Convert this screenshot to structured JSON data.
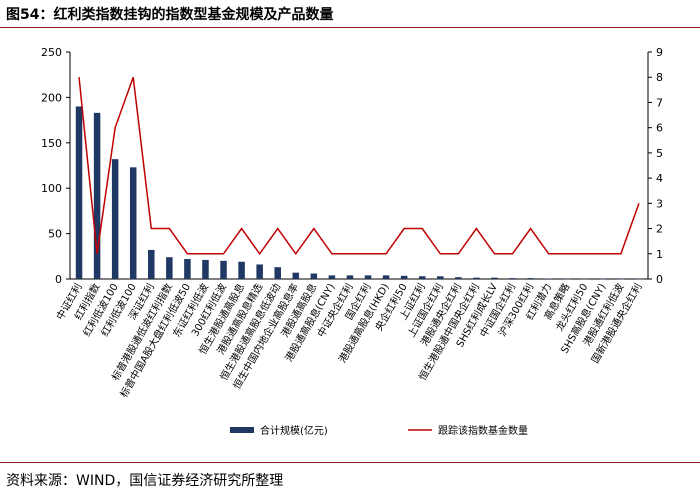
{
  "header": {
    "title": "图54：红利类指数挂钩的指数型基金规模及产品数量"
  },
  "footer": {
    "source": "资料来源：WIND，国信证券经济研究所整理"
  },
  "colors": {
    "bar": "#1f3864",
    "line": "#c00000",
    "rule": "#8c1d1d"
  },
  "chart_data": {
    "type": "bar",
    "categories": [
      "中证红利",
      "红利指数",
      "红利低波100",
      "红利低波100",
      "深证红利",
      "标普港股通低波红利指数",
      "标普中国A股大盘红利低波50",
      "东证红利低波",
      "300红利低波",
      "恒生港股通高股息",
      "港股通高股息精选",
      "恒生港股通高股息低波动",
      "恒生中国内地企业高股息率",
      "港股通高股息",
      "港股通高股息(CNY)",
      "中证央企红利",
      "国企红利",
      "港股通高股息(HKD)",
      "央企红利50",
      "上证红利",
      "上证国企红利",
      "港股通央企红利",
      "恒生港股通中国央企红利",
      "SHS红利成长LV",
      "中证国企红利",
      "沪深300红利",
      "红利潜力",
      "高息策略",
      "龙头红利50",
      "SHS高股息(CNY)",
      "港股通红利低波",
      "国新港股通央企红利"
    ],
    "series": [
      {
        "name": "合计规模(亿元)",
        "type": "bar",
        "axis": "left",
        "values": [
          190,
          183,
          132,
          123,
          32,
          24,
          22,
          21,
          20,
          19,
          16,
          13,
          7,
          6,
          4,
          4,
          4,
          4,
          3.5,
          3,
          3,
          2,
          1.5,
          1.5,
          1,
          1,
          0.5,
          0.3,
          0.2,
          0.2,
          0.1,
          0.1
        ]
      },
      {
        "name": "跟踪该指数基金数量",
        "type": "line",
        "axis": "right",
        "values": [
          8,
          1,
          6,
          8,
          2,
          2,
          1,
          1,
          1,
          2,
          1,
          2,
          1,
          2,
          1,
          1,
          1,
          1,
          2,
          2,
          1,
          1,
          2,
          1,
          1,
          2,
          1,
          1,
          1,
          1,
          1,
          3
        ]
      }
    ],
    "y_left": {
      "min": 0,
      "max": 250,
      "ticks": [
        0,
        50,
        100,
        150,
        200,
        250
      ]
    },
    "y_right": {
      "min": 0,
      "max": 9,
      "ticks": [
        0,
        1,
        2,
        3,
        4,
        5,
        6,
        7,
        8,
        9
      ]
    },
    "grid": false,
    "legend_position": "bottom"
  }
}
